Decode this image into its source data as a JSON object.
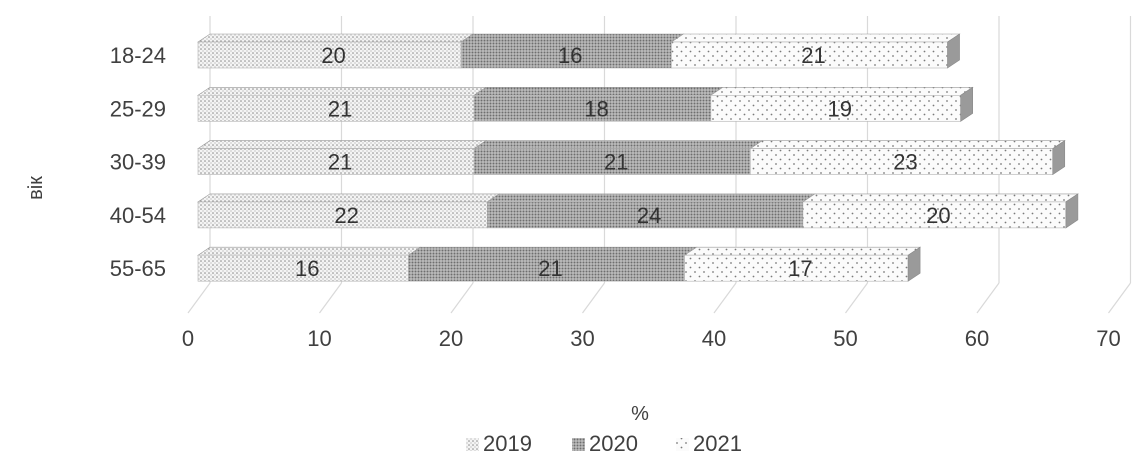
{
  "chart_data": {
    "type": "bar",
    "orientation": "horizontal",
    "stacked": true,
    "style_3d": true,
    "categories": [
      "18-24",
      "25-29",
      "30-39",
      "40-54",
      "55-65"
    ],
    "series": [
      {
        "name": "2019",
        "values": [
          20,
          21,
          21,
          22,
          16
        ],
        "pattern": "fine-dots"
      },
      {
        "name": "2020",
        "values": [
          16,
          18,
          21,
          24,
          21
        ],
        "pattern": "dense-dots"
      },
      {
        "name": "2021",
        "values": [
          21,
          19,
          23,
          20,
          17
        ],
        "pattern": "sparse-dots"
      }
    ],
    "xlabel": "%",
    "ylabel": "вік",
    "xlim": [
      0,
      70
    ],
    "xticks": [
      0,
      10,
      20,
      30,
      40,
      50,
      60,
      70
    ],
    "grid": true,
    "legend_position": "bottom",
    "colors": {
      "grid": "#d9d9d9",
      "text": "#404040",
      "bar_fill": "#f7f7f7",
      "side": "#9a9a9a"
    }
  }
}
